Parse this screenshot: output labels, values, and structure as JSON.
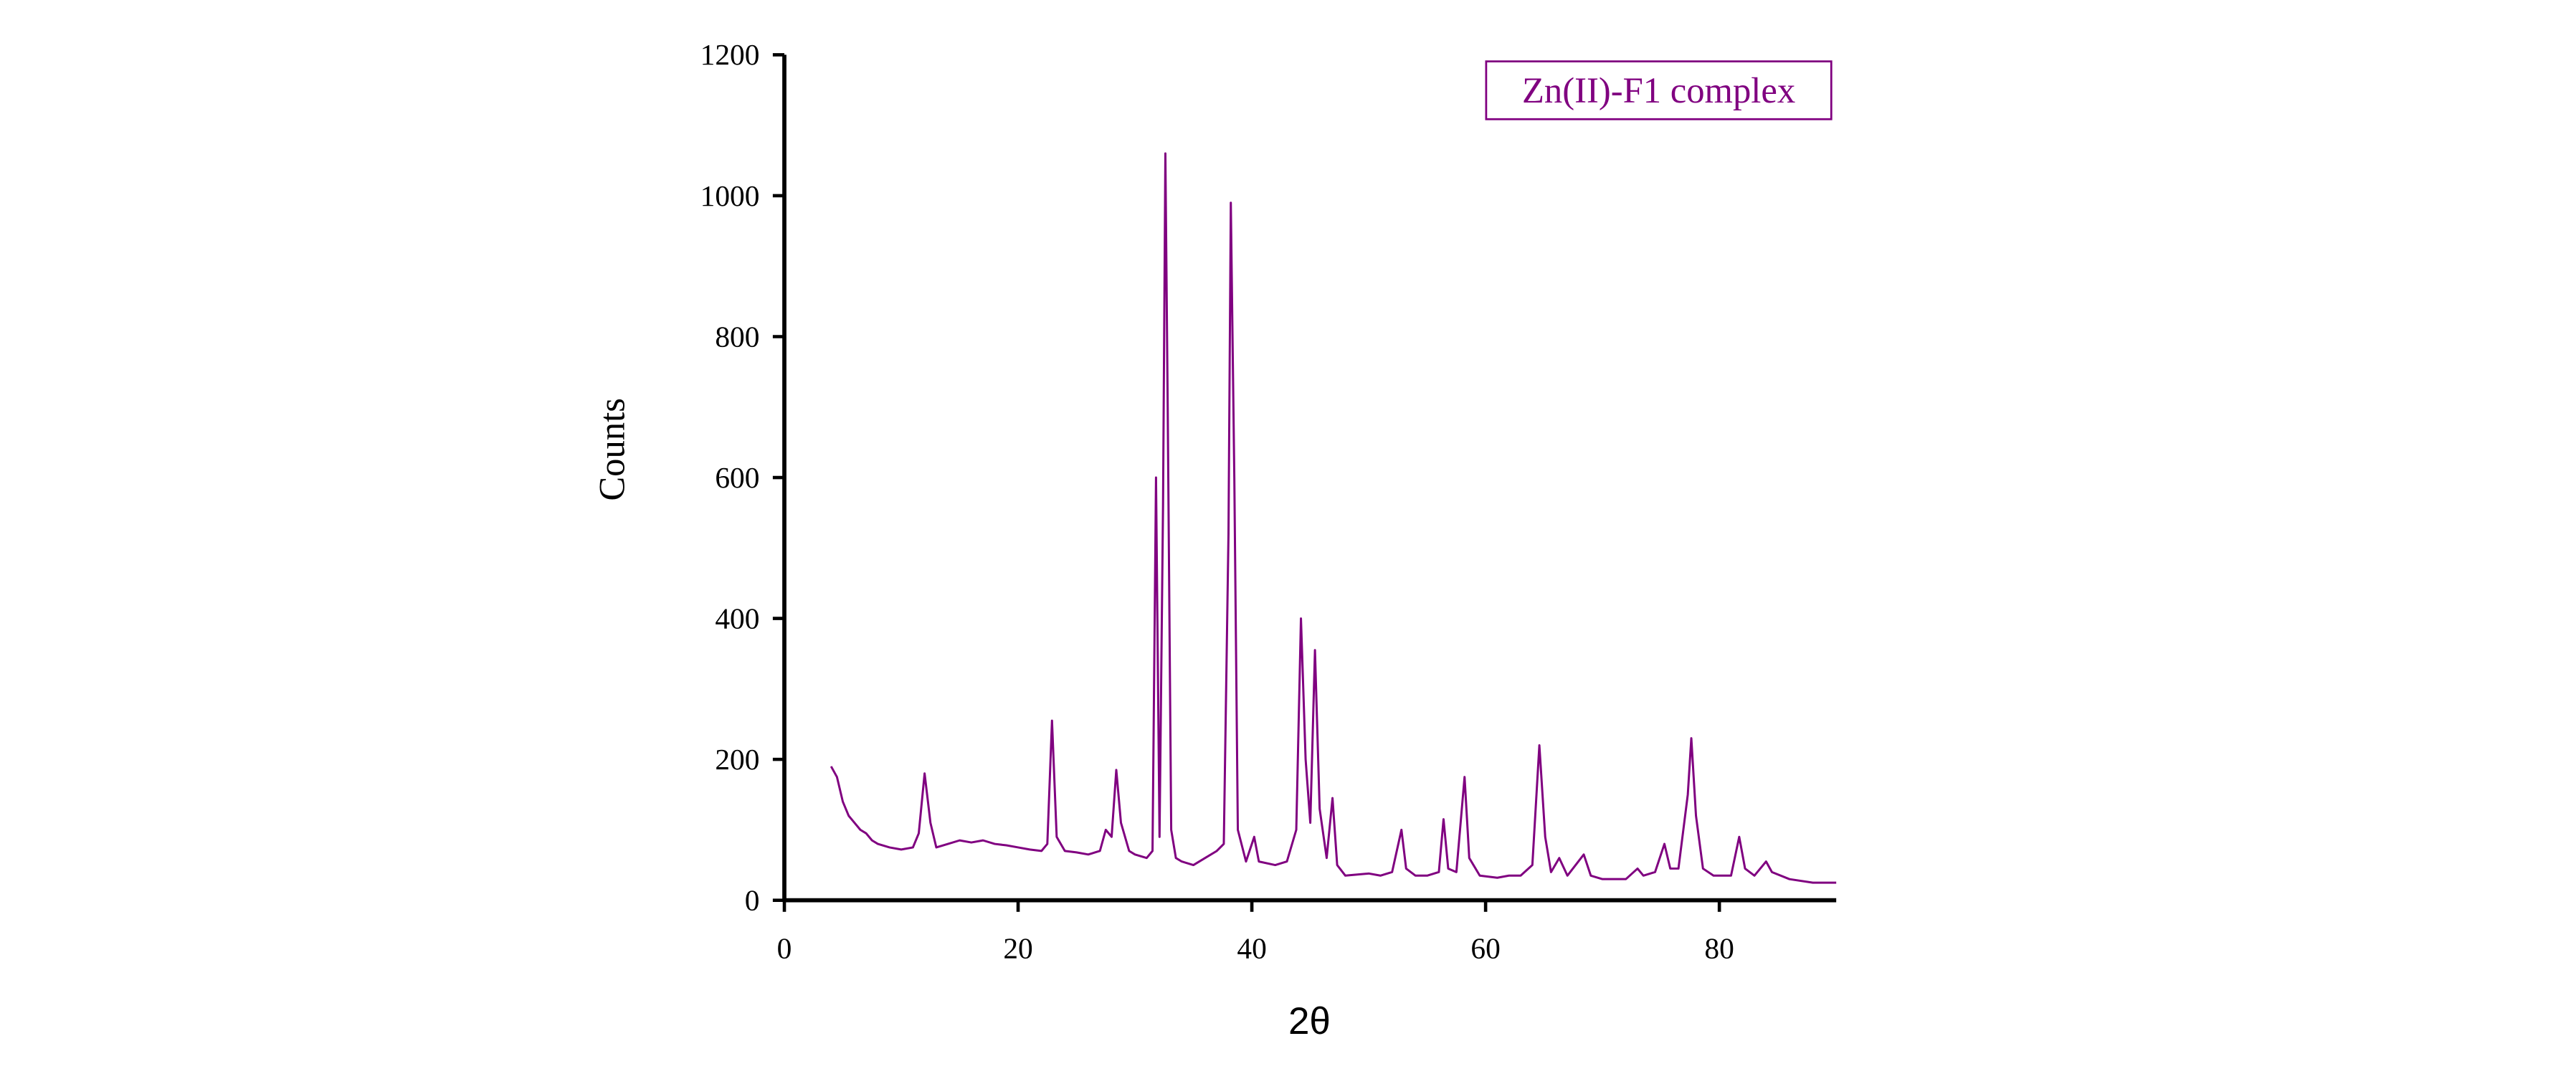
{
  "chart_data": {
    "type": "line",
    "legend_label": "Zn(II)-F1 complex",
    "xlabel": "2θ",
    "ylabel": "Counts",
    "xlim": [
      0,
      90
    ],
    "ylim": [
      0,
      1200
    ],
    "xticks": [
      0,
      20,
      40,
      60,
      80
    ],
    "yticks": [
      0,
      200,
      400,
      600,
      800,
      1000,
      1200
    ],
    "legend_position": "upper right",
    "series": [
      {
        "name": "Zn(II)-F1 complex",
        "color": "#800080",
        "x": [
          4,
          4.5,
          5,
          5.5,
          6,
          6.5,
          7,
          7.5,
          8,
          9,
          10,
          11,
          11.5,
          12,
          12.5,
          13,
          14,
          15,
          16,
          17,
          18,
          19,
          20,
          21,
          22,
          22.5,
          22.9,
          23.3,
          24,
          25,
          26,
          27,
          27.5,
          28,
          28.4,
          28.8,
          29.5,
          30,
          31,
          31.5,
          31.8,
          32.1,
          32.4,
          32.6,
          32.8,
          33.1,
          33.5,
          34,
          35,
          36,
          37,
          37.6,
          38,
          38.2,
          38.5,
          38.8,
          39.5,
          40.2,
          40.6,
          42,
          43,
          43.8,
          44.2,
          44.6,
          45,
          45.4,
          45.8,
          46.4,
          46.9,
          47.3,
          48,
          50,
          51,
          52,
          52.8,
          53.2,
          54,
          55,
          56,
          56.4,
          56.8,
          57.5,
          58.2,
          58.6,
          59.5,
          61,
          62,
          63,
          64,
          64.6,
          65.1,
          65.6,
          66.3,
          67,
          68.4,
          69,
          70,
          71,
          72,
          73,
          73.5,
          74.5,
          75.3,
          75.8,
          76.5,
          77.3,
          77.6,
          78,
          78.6,
          79.5,
          81,
          81.7,
          82.2,
          83,
          84,
          84.5,
          86,
          88,
          90
        ],
        "values": [
          190,
          175,
          140,
          120,
          110,
          100,
          95,
          85,
          80,
          75,
          72,
          75,
          95,
          180,
          110,
          75,
          80,
          85,
          82,
          85,
          80,
          78,
          75,
          72,
          70,
          80,
          255,
          90,
          70,
          68,
          65,
          70,
          100,
          90,
          185,
          110,
          70,
          65,
          60,
          70,
          600,
          90,
          560,
          1060,
          700,
          100,
          60,
          55,
          50,
          60,
          70,
          80,
          520,
          990,
          600,
          100,
          55,
          90,
          55,
          50,
          55,
          100,
          400,
          200,
          110,
          355,
          130,
          60,
          145,
          50,
          35,
          38,
          35,
          40,
          100,
          45,
          35,
          35,
          40,
          115,
          45,
          40,
          175,
          60,
          35,
          32,
          35,
          35,
          50,
          220,
          90,
          40,
          60,
          35,
          65,
          35,
          30,
          30,
          30,
          45,
          35,
          40,
          80,
          45,
          45,
          150,
          230,
          120,
          45,
          35,
          35,
          90,
          45,
          35,
          55,
          40,
          30,
          25,
          25
        ]
      }
    ]
  }
}
